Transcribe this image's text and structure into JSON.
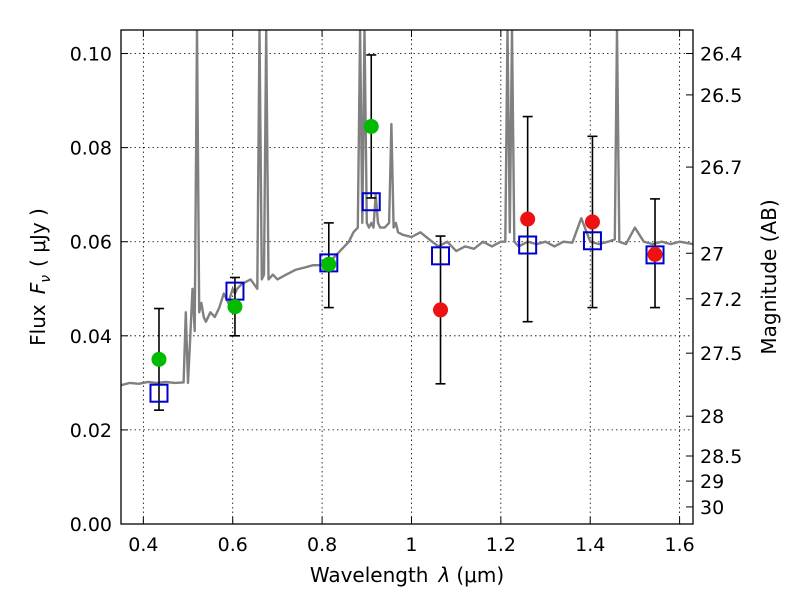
{
  "chart_data": {
    "type": "scatter",
    "xlabel_prefix": "Wavelength",
    "xlabel_symbol": "λ",
    "xlabel_unit": "(μm)",
    "ylabel_prefix": "Flux",
    "ylabel_symbol": "F",
    "ylabel_subscript": "ν",
    "ylabel_unit": "( μJy )",
    "y2label": "Magnitude (AB)",
    "xlim": [
      0.35,
      1.63
    ],
    "ylim": [
      0.0,
      0.105
    ],
    "grid": true,
    "x_ticks": [
      {
        "value": 0.4,
        "label": "0.4"
      },
      {
        "value": 0.6,
        "label": "0.6"
      },
      {
        "value": 0.8,
        "label": "0.8"
      },
      {
        "value": 1.0,
        "label": "1"
      },
      {
        "value": 1.2,
        "label": "1.2"
      },
      {
        "value": 1.4,
        "label": "1.4"
      },
      {
        "value": 1.6,
        "label": "1.6"
      }
    ],
    "y_ticks": [
      {
        "value": 0.0,
        "label": "0.00"
      },
      {
        "value": 0.02,
        "label": "0.02"
      },
      {
        "value": 0.04,
        "label": "0.04"
      },
      {
        "value": 0.06,
        "label": "0.06"
      },
      {
        "value": 0.08,
        "label": "0.08"
      },
      {
        "value": 0.1,
        "label": "0.10"
      }
    ],
    "mag_ticks": [
      {
        "value": 26.4,
        "label": "26.4"
      },
      {
        "value": 26.5,
        "label": "26.5"
      },
      {
        "value": 26.7,
        "label": "26.7"
      },
      {
        "value": 27.0,
        "label": "27"
      },
      {
        "value": 27.2,
        "label": "27.2"
      },
      {
        "value": 27.5,
        "label": "27.5"
      },
      {
        "value": 28.0,
        "label": "28"
      },
      {
        "value": 28.5,
        "label": "28.5"
      },
      {
        "value": 29.0,
        "label": "29"
      },
      {
        "value": 30.0,
        "label": "30"
      }
    ],
    "spectrum": {
      "color": "#808080",
      "x": [
        0.35,
        0.37,
        0.39,
        0.41,
        0.43,
        0.45,
        0.47,
        0.49,
        0.495,
        0.5,
        0.505,
        0.51,
        0.515,
        0.52,
        0.525,
        0.53,
        0.535,
        0.54,
        0.55,
        0.56,
        0.57,
        0.58,
        0.59,
        0.6,
        0.605,
        0.61,
        0.62,
        0.64,
        0.655,
        0.66,
        0.665,
        0.67,
        0.675,
        0.68,
        0.69,
        0.7,
        0.72,
        0.74,
        0.76,
        0.78,
        0.8,
        0.82,
        0.84,
        0.86,
        0.87,
        0.88,
        0.885,
        0.89,
        0.895,
        0.9,
        0.905,
        0.91,
        0.915,
        0.92,
        0.925,
        0.93,
        0.94,
        0.95,
        0.955,
        0.96,
        0.965,
        0.97,
        0.98,
        1.0,
        1.02,
        1.04,
        1.06,
        1.08,
        1.1,
        1.12,
        1.14,
        1.16,
        1.18,
        1.2,
        1.21,
        1.215,
        1.22,
        1.225,
        1.23,
        1.24,
        1.26,
        1.28,
        1.3,
        1.32,
        1.34,
        1.36,
        1.38,
        1.4,
        1.42,
        1.44,
        1.455,
        1.46,
        1.465,
        1.48,
        1.5,
        1.52,
        1.54,
        1.56,
        1.58,
        1.6,
        1.63
      ],
      "y": [
        0.0295,
        0.03,
        0.0298,
        0.0302,
        0.03,
        0.0302,
        0.03,
        0.0301,
        0.045,
        0.03,
        0.04,
        0.05,
        0.041,
        0.105,
        0.045,
        0.047,
        0.044,
        0.043,
        0.045,
        0.044,
        0.046,
        0.049,
        0.047,
        0.05,
        0.049,
        0.05,
        0.051,
        0.052,
        0.05,
        0.105,
        0.052,
        0.053,
        0.105,
        0.052,
        0.053,
        0.052,
        0.053,
        0.054,
        0.0545,
        0.055,
        0.055,
        0.056,
        0.058,
        0.06,
        0.062,
        0.063,
        0.105,
        0.064,
        0.105,
        0.064,
        0.063,
        0.064,
        0.063,
        0.07,
        0.064,
        0.063,
        0.063,
        0.064,
        0.085,
        0.063,
        0.064,
        0.062,
        0.0615,
        0.061,
        0.062,
        0.0605,
        0.059,
        0.06,
        0.058,
        0.059,
        0.0585,
        0.06,
        0.059,
        0.06,
        0.06,
        0.105,
        0.062,
        0.105,
        0.06,
        0.059,
        0.06,
        0.0595,
        0.06,
        0.059,
        0.06,
        0.0598,
        0.065,
        0.06,
        0.0595,
        0.06,
        0.0605,
        0.105,
        0.06,
        0.0595,
        0.063,
        0.06,
        0.0595,
        0.06,
        0.0595,
        0.06,
        0.0595
      ]
    },
    "model_points": {
      "color": "#0000cc",
      "x": [
        0.435,
        0.605,
        0.815,
        0.91,
        1.065,
        1.26,
        1.405,
        1.545
      ],
      "y": [
        0.0278,
        0.0495,
        0.0555,
        0.0685,
        0.057,
        0.0593,
        0.0602,
        0.0572
      ]
    },
    "observed_optical": {
      "color": "#00bb00",
      "x": [
        0.435,
        0.605,
        0.815,
        0.91
      ],
      "y": [
        0.035,
        0.0462,
        0.0552,
        0.0845
      ],
      "err_low": [
        0.0108,
        0.0062,
        0.0092,
        0.0152
      ],
      "err_high": [
        0.0108,
        0.0062,
        0.0088,
        0.0152
      ]
    },
    "observed_ir": {
      "color": "#ee1111",
      "x": [
        1.065,
        1.26,
        1.405,
        1.545
      ],
      "y": [
        0.0455,
        0.0648,
        0.0642,
        0.0573
      ],
      "err_low": [
        0.0157,
        0.0218,
        0.0182,
        0.0113
      ],
      "err_high": [
        0.0157,
        0.0218,
        0.0182,
        0.0118
      ]
    }
  }
}
